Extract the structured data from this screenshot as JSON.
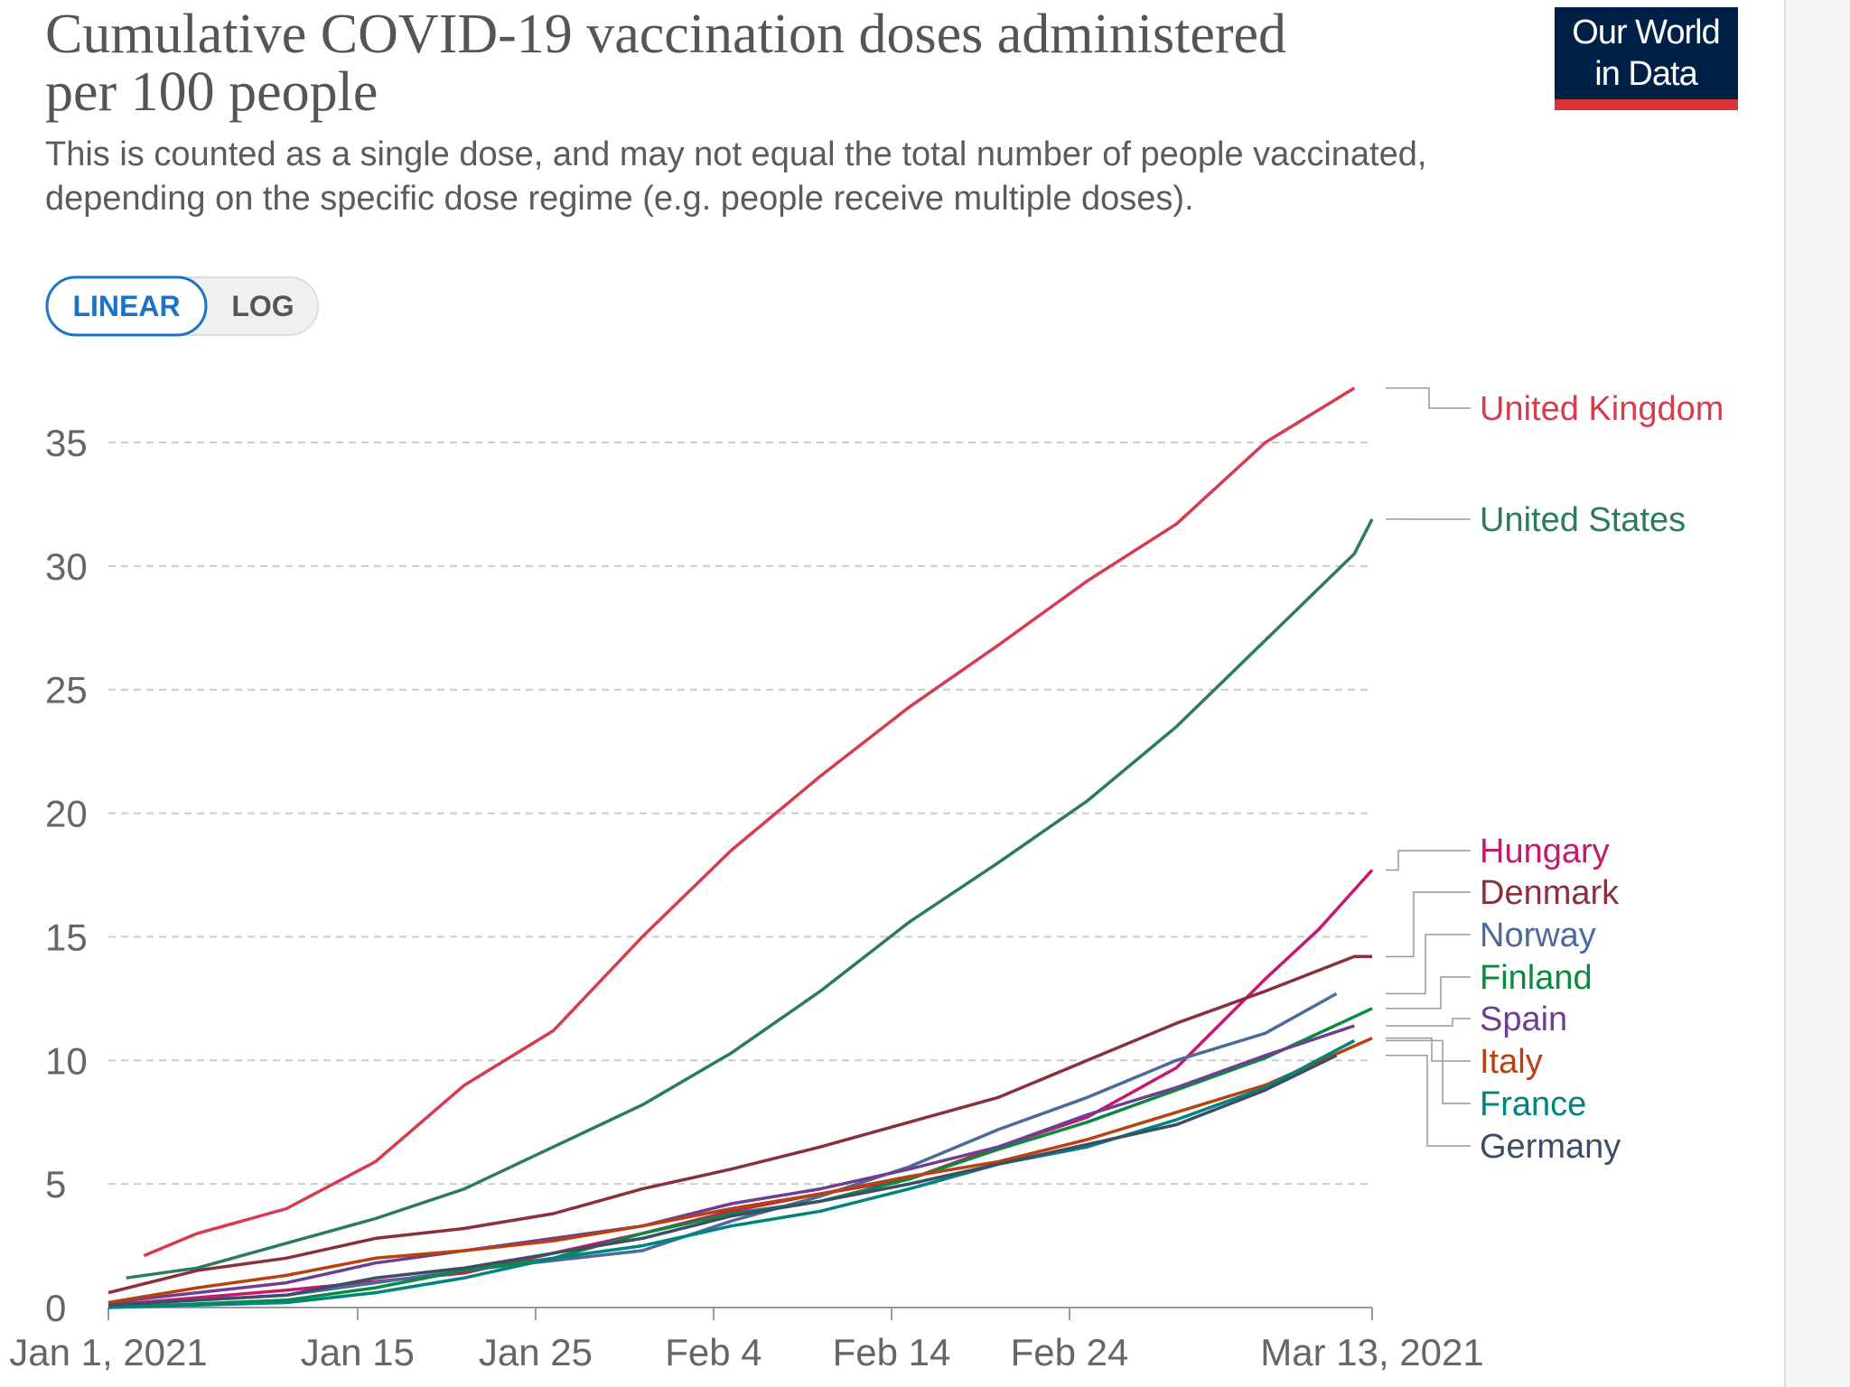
{
  "chart_data": {
    "type": "line",
    "title": [
      "Cumulative COVID-19 vaccination doses administered",
      "per 100 people"
    ],
    "subtitle": [
      "This is counted as a single dose, and may not equal the total number of people vaccinated,",
      "depending on the specific dose regime (e.g. people receive multiple doses)."
    ],
    "logo": [
      "Our World",
      "in Data"
    ],
    "scale_buttons": [
      "LINEAR",
      "LOG"
    ],
    "log_scale": false,
    "grid": true,
    "xlim": [
      "2021-01-01",
      "2021-03-13"
    ],
    "xticks": [
      {
        "value": "2021-01-01",
        "label": "Jan 1, 2021"
      },
      {
        "value": "2021-01-15",
        "label": "Jan 15"
      },
      {
        "value": "2021-01-25",
        "label": "Jan 25"
      },
      {
        "value": "2021-02-04",
        "label": "Feb 4"
      },
      {
        "value": "2021-02-14",
        "label": "Feb 14"
      },
      {
        "value": "2021-02-24",
        "label": "Feb 24"
      },
      {
        "value": "2021-03-13",
        "label": "Mar 13, 2021"
      }
    ],
    "ylim": [
      0,
      35
    ],
    "yticks": [
      0,
      5,
      10,
      15,
      20,
      25,
      30,
      35
    ],
    "series": [
      {
        "name": "United Kingdom",
        "color": "#d73b50",
        "x": [
          "2021-01-03",
          "2021-01-06",
          "2021-01-11",
          "2021-01-16",
          "2021-01-21",
          "2021-01-26",
          "2021-01-31",
          "2021-02-05",
          "2021-02-10",
          "2021-02-15",
          "2021-02-20",
          "2021-02-25",
          "2021-03-02",
          "2021-03-07",
          "2021-03-12"
        ],
        "values": [
          2.1,
          3.0,
          4.0,
          5.9,
          9.0,
          11.2,
          15.0,
          18.5,
          21.5,
          24.3,
          26.8,
          29.4,
          31.7,
          35.0,
          37.2
        ]
      },
      {
        "name": "United States",
        "color": "#2b7a63",
        "x": [
          "2021-01-02",
          "2021-01-06",
          "2021-01-11",
          "2021-01-16",
          "2021-01-21",
          "2021-01-26",
          "2021-01-31",
          "2021-02-05",
          "2021-02-10",
          "2021-02-15",
          "2021-02-20",
          "2021-02-25",
          "2021-03-02",
          "2021-03-07",
          "2021-03-12",
          "2021-03-13"
        ],
        "values": [
          1.2,
          1.6,
          2.6,
          3.6,
          4.8,
          6.5,
          8.2,
          10.3,
          12.8,
          15.6,
          18.0,
          20.5,
          23.5,
          27.0,
          30.5,
          31.9
        ]
      },
      {
        "name": "Hungary",
        "color": "#c8186d",
        "x": [
          "2021-01-01",
          "2021-01-11",
          "2021-01-21",
          "2021-01-31",
          "2021-02-05",
          "2021-02-10",
          "2021-02-15",
          "2021-02-20",
          "2021-02-25",
          "2021-03-02",
          "2021-03-07",
          "2021-03-10",
          "2021-03-13"
        ],
        "values": [
          0.1,
          0.7,
          1.4,
          3.0,
          3.9,
          4.6,
          5.2,
          6.5,
          7.7,
          9.7,
          13.3,
          15.3,
          17.7
        ]
      },
      {
        "name": "Denmark",
        "color": "#8c2f3c",
        "x": [
          "2021-01-01",
          "2021-01-06",
          "2021-01-11",
          "2021-01-16",
          "2021-01-21",
          "2021-01-26",
          "2021-01-31",
          "2021-02-05",
          "2021-02-10",
          "2021-02-15",
          "2021-02-20",
          "2021-02-25",
          "2021-03-02",
          "2021-03-07",
          "2021-03-12",
          "2021-03-13"
        ],
        "values": [
          0.6,
          1.5,
          2.0,
          2.8,
          3.2,
          3.8,
          4.8,
          5.6,
          6.5,
          7.5,
          8.5,
          10.0,
          11.5,
          12.8,
          14.2,
          14.2
        ]
      },
      {
        "name": "Norway",
        "color": "#4c6a9c",
        "x": [
          "2021-01-01",
          "2021-01-11",
          "2021-01-21",
          "2021-01-31",
          "2021-02-05",
          "2021-02-10",
          "2021-02-15",
          "2021-02-20",
          "2021-02-25",
          "2021-03-02",
          "2021-03-07",
          "2021-03-11"
        ],
        "values": [
          0.1,
          0.5,
          1.5,
          2.3,
          3.5,
          4.5,
          5.7,
          7.2,
          8.5,
          10.0,
          11.1,
          12.7
        ]
      },
      {
        "name": "Finland",
        "color": "#0a8a3e",
        "x": [
          "2021-01-01",
          "2021-01-11",
          "2021-01-16",
          "2021-01-21",
          "2021-01-26",
          "2021-01-31",
          "2021-02-05",
          "2021-02-10",
          "2021-02-15",
          "2021-02-20",
          "2021-02-25",
          "2021-03-02",
          "2021-03-07",
          "2021-03-13"
        ],
        "values": [
          0,
          0.3,
          0.8,
          1.5,
          2.0,
          3.0,
          3.8,
          4.3,
          5.2,
          6.4,
          7.5,
          8.8,
          10.1,
          12.1
        ]
      },
      {
        "name": "Spain",
        "color": "#6d3e91",
        "x": [
          "2021-01-01",
          "2021-01-11",
          "2021-01-16",
          "2021-01-21",
          "2021-01-26",
          "2021-01-31",
          "2021-02-05",
          "2021-02-10",
          "2021-02-15",
          "2021-02-20",
          "2021-02-25",
          "2021-03-02",
          "2021-03-07",
          "2021-03-12"
        ],
        "values": [
          0.2,
          1.0,
          1.8,
          2.3,
          2.8,
          3.3,
          4.2,
          4.8,
          5.6,
          6.5,
          7.8,
          8.9,
          10.2,
          11.4
        ]
      },
      {
        "name": "Italy",
        "color": "#b8410f",
        "x": [
          "2021-01-01",
          "2021-01-06",
          "2021-01-11",
          "2021-01-16",
          "2021-01-21",
          "2021-01-26",
          "2021-01-31",
          "2021-02-05",
          "2021-02-10",
          "2021-02-15",
          "2021-02-20",
          "2021-02-25",
          "2021-03-02",
          "2021-03-07",
          "2021-03-13"
        ],
        "values": [
          0.2,
          0.8,
          1.3,
          2.0,
          2.3,
          2.7,
          3.3,
          4.0,
          4.6,
          5.3,
          5.9,
          6.8,
          7.9,
          9.0,
          10.9
        ]
      },
      {
        "name": "France",
        "color": "#00847e",
        "x": [
          "2021-01-01",
          "2021-01-11",
          "2021-01-16",
          "2021-01-21",
          "2021-01-26",
          "2021-01-31",
          "2021-02-05",
          "2021-02-10",
          "2021-02-15",
          "2021-02-20",
          "2021-02-25",
          "2021-03-02",
          "2021-03-07",
          "2021-03-12"
        ],
        "values": [
          0,
          0.2,
          0.6,
          1.2,
          2.0,
          2.5,
          3.3,
          3.9,
          4.8,
          5.8,
          6.5,
          7.6,
          8.9,
          10.8
        ]
      },
      {
        "name": "Germany",
        "color": "#3c4e66",
        "x": [
          "2021-01-01",
          "2021-01-11",
          "2021-01-16",
          "2021-01-21",
          "2021-01-26",
          "2021-01-31",
          "2021-02-05",
          "2021-02-10",
          "2021-02-15",
          "2021-02-20",
          "2021-02-25",
          "2021-03-02",
          "2021-03-07",
          "2021-03-11"
        ],
        "values": [
          0.1,
          0.5,
          1.2,
          1.6,
          2.2,
          2.8,
          3.7,
          4.3,
          5.0,
          5.8,
          6.6,
          7.4,
          8.8,
          10.2
        ]
      }
    ]
  }
}
